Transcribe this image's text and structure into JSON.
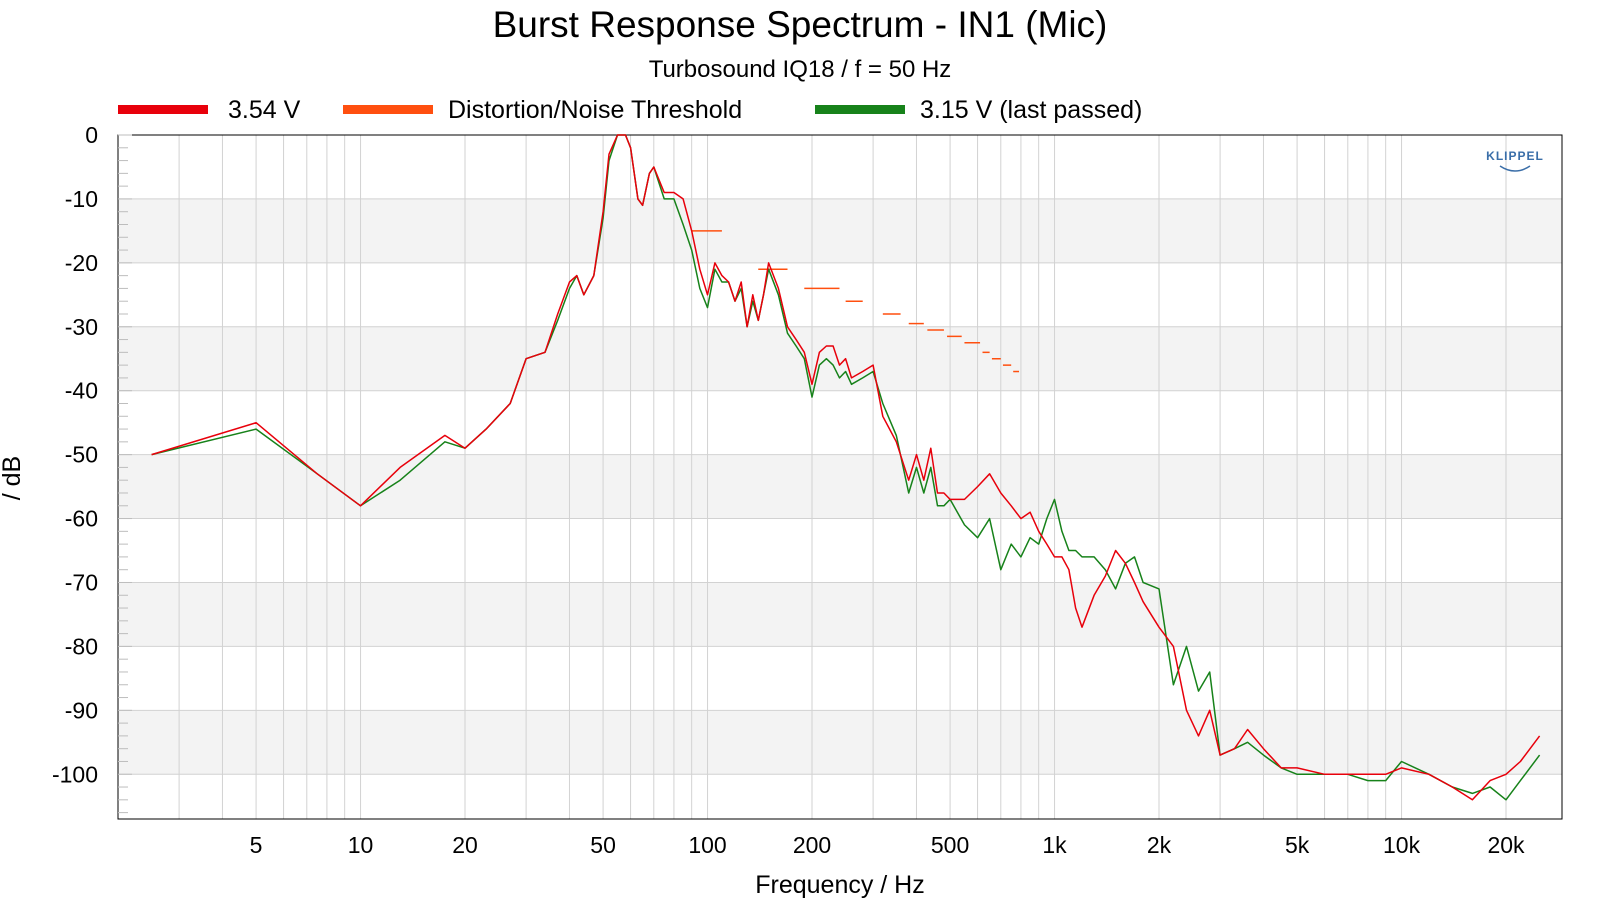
{
  "chart_data": {
    "type": "line",
    "title": "Burst Response Spectrum - IN1 (Mic)",
    "subtitle": "Turbosound IQ18 / f = 50 Hz",
    "xlabel": "Frequency / Hz",
    "ylabel": "/ dB",
    "x_scale": "log",
    "xlim": [
      2,
      29000
    ],
    "ylim": [
      -107,
      0
    ],
    "grid": true,
    "legend_position": "top",
    "x_ticks": [
      {
        "value": 5,
        "label": "5"
      },
      {
        "value": 10,
        "label": "10"
      },
      {
        "value": 20,
        "label": "20"
      },
      {
        "value": 50,
        "label": "50"
      },
      {
        "value": 100,
        "label": "100"
      },
      {
        "value": 200,
        "label": "200"
      },
      {
        "value": 500,
        "label": "500"
      },
      {
        "value": 1000,
        "label": "1k"
      },
      {
        "value": 2000,
        "label": "2k"
      },
      {
        "value": 5000,
        "label": "5k"
      },
      {
        "value": 10000,
        "label": "10k"
      },
      {
        "value": 20000,
        "label": "20k"
      }
    ],
    "y_ticks": [
      {
        "value": 0,
        "label": "0"
      },
      {
        "value": -10,
        "label": "-10"
      },
      {
        "value": -20,
        "label": "-20"
      },
      {
        "value": -30,
        "label": "-30"
      },
      {
        "value": -40,
        "label": "-40"
      },
      {
        "value": -50,
        "label": "-50"
      },
      {
        "value": -60,
        "label": "-60"
      },
      {
        "value": -70,
        "label": "-70"
      },
      {
        "value": -80,
        "label": "-80"
      },
      {
        "value": -90,
        "label": "-90"
      },
      {
        "value": -100,
        "label": "-100"
      }
    ],
    "series": [
      {
        "name": "3.54 V",
        "color": "#e8000b",
        "x": [
          2.5,
          5,
          7.5,
          10,
          13,
          17.5,
          20,
          23,
          27,
          30,
          34,
          37,
          40,
          42,
          44,
          47,
          50,
          52,
          55,
          58,
          60,
          63,
          65,
          68,
          70,
          75,
          80,
          85,
          90,
          95,
          100,
          105,
          110,
          115,
          120,
          125,
          130,
          135,
          140,
          145,
          150,
          160,
          170,
          180,
          190,
          200,
          210,
          220,
          230,
          240,
          250,
          260,
          280,
          300,
          320,
          350,
          380,
          400,
          420,
          440,
          460,
          480,
          500,
          550,
          600,
          650,
          700,
          750,
          800,
          850,
          900,
          950,
          1000,
          1050,
          1100,
          1150,
          1200,
          1300,
          1400,
          1500,
          1600,
          1700,
          1800,
          2000,
          2200,
          2400,
          2600,
          2800,
          3000,
          3300,
          3600,
          4000,
          4500,
          5000,
          6000,
          7000,
          8000,
          9000,
          10000,
          12000,
          14000,
          16000,
          18000,
          20000,
          22000,
          25000
        ],
        "values": [
          -50,
          -45,
          -53,
          -58,
          -52,
          -47,
          -49,
          -46,
          -42,
          -35,
          -34,
          -28,
          -23,
          -22,
          -25,
          -22,
          -12,
          -3,
          0,
          0,
          -2,
          -10,
          -11,
          -6,
          -5,
          -9,
          -9,
          -10,
          -15,
          -21,
          -25,
          -20,
          -22,
          -23,
          -26,
          -23,
          -30,
          -25,
          -29,
          -25,
          -20,
          -24,
          -30,
          -32,
          -34,
          -39,
          -34,
          -33,
          -33,
          -36,
          -35,
          -38,
          -37,
          -36,
          -44,
          -48,
          -54,
          -50,
          -54,
          -49,
          -56,
          -56,
          -57,
          -57,
          -55,
          -53,
          -56,
          -58,
          -60,
          -59,
          -62,
          -64,
          -66,
          -66,
          -68,
          -74,
          -77,
          -72,
          -69,
          -65,
          -67,
          -70,
          -73,
          -77,
          -80,
          -90,
          -94,
          -90,
          -97,
          -96,
          -93,
          -96,
          -99,
          -99,
          -100,
          -100,
          -100,
          -100,
          -99,
          -100,
          -102,
          -104,
          -101,
          -100,
          -98,
          -94
        ]
      },
      {
        "name": "Distortion/Noise Threshold",
        "color": "#ff4f0f",
        "segments": [
          {
            "x0": 90,
            "x1": 110,
            "y": -15
          },
          {
            "x0": 140,
            "x1": 170,
            "y": -21
          },
          {
            "x0": 190,
            "x1": 240,
            "y": -24
          },
          {
            "x0": 250,
            "x1": 280,
            "y": -26
          },
          {
            "x0": 320,
            "x1": 360,
            "y": -28
          },
          {
            "x0": 380,
            "x1": 420,
            "y": -29.5
          },
          {
            "x0": 430,
            "x1": 480,
            "y": -30.5
          },
          {
            "x0": 490,
            "x1": 540,
            "y": -31.5
          },
          {
            "x0": 550,
            "x1": 610,
            "y": -32.5
          },
          {
            "x0": 620,
            "x1": 650,
            "y": -34
          },
          {
            "x0": 660,
            "x1": 700,
            "y": -35
          },
          {
            "x0": 710,
            "x1": 750,
            "y": -36
          },
          {
            "x0": 760,
            "x1": 790,
            "y": -37
          }
        ]
      },
      {
        "name": "3.15 V (last passed)",
        "color": "#17821a",
        "x": [
          2.5,
          5,
          7.5,
          10,
          13,
          17.5,
          20,
          23,
          27,
          30,
          34,
          37,
          40,
          42,
          44,
          47,
          50,
          52,
          55,
          58,
          60,
          63,
          65,
          68,
          70,
          75,
          80,
          85,
          90,
          95,
          100,
          105,
          110,
          115,
          120,
          125,
          130,
          135,
          140,
          145,
          150,
          160,
          170,
          180,
          190,
          200,
          210,
          220,
          230,
          240,
          250,
          260,
          280,
          300,
          320,
          350,
          380,
          400,
          420,
          440,
          460,
          480,
          500,
          550,
          600,
          650,
          700,
          750,
          800,
          850,
          900,
          950,
          1000,
          1050,
          1100,
          1150,
          1200,
          1300,
          1400,
          1500,
          1600,
          1700,
          1800,
          2000,
          2200,
          2400,
          2600,
          2800,
          3000,
          3300,
          3600,
          4000,
          4500,
          5000,
          6000,
          7000,
          8000,
          9000,
          10000,
          12000,
          14000,
          16000,
          18000,
          20000,
          22000,
          25000
        ],
        "values": [
          -50,
          -46,
          -53,
          -58,
          -54,
          -48,
          -49,
          -46,
          -42,
          -35,
          -34,
          -29,
          -24,
          -22,
          -25,
          -22,
          -13,
          -4,
          0,
          0,
          -2,
          -10,
          -11,
          -6,
          -5,
          -10,
          -10,
          -14,
          -18,
          -24,
          -27,
          -21,
          -23,
          -23,
          -26,
          -24,
          -30,
          -26,
          -29,
          -25,
          -21,
          -25,
          -31,
          -33,
          -35,
          -41,
          -36,
          -35,
          -36,
          -38,
          -37,
          -39,
          -38,
          -37,
          -42,
          -47,
          -56,
          -52,
          -56,
          -52,
          -58,
          -58,
          -57,
          -61,
          -63,
          -60,
          -68,
          -64,
          -66,
          -63,
          -64,
          -60,
          -57,
          -62,
          -65,
          -65,
          -66,
          -66,
          -68,
          -71,
          -67,
          -66,
          -70,
          -71,
          -86,
          -80,
          -87,
          -84,
          -97,
          -96,
          -95,
          -97,
          -99,
          -100,
          -100,
          -100,
          -101,
          -101,
          -98,
          -100,
          -102,
          -103,
          -102,
          -104,
          -101,
          -97
        ]
      }
    ]
  },
  "logo_text": "KLIPPEL"
}
